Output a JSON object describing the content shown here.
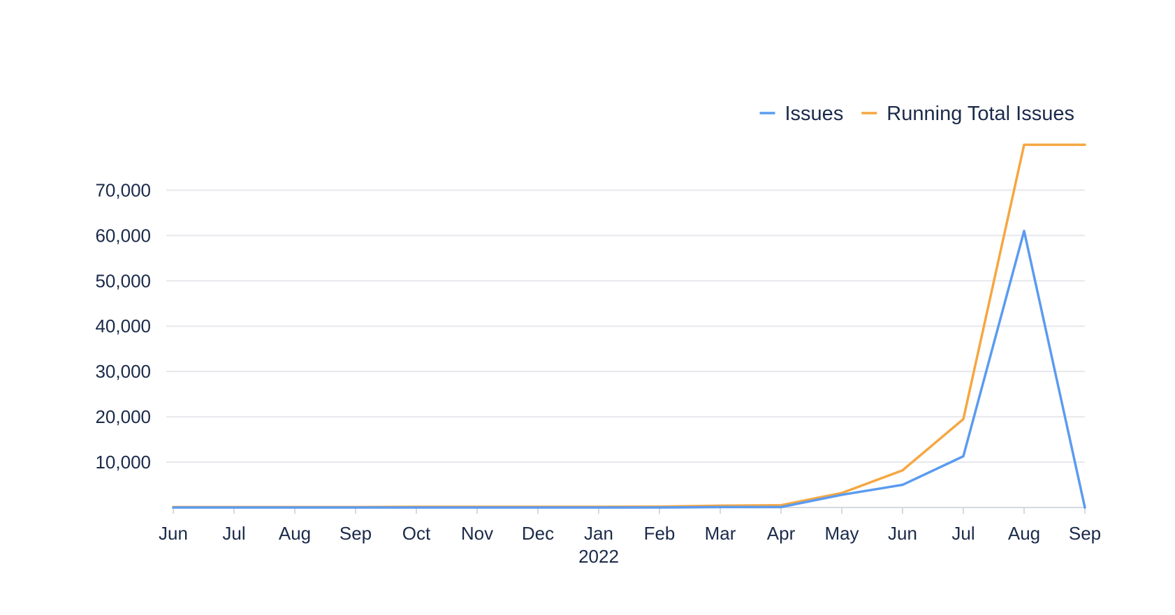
{
  "chart_data": {
    "type": "line",
    "title": "",
    "xlabel": "",
    "ylabel": "",
    "x": [
      "Jun",
      "Jul",
      "Aug",
      "Sep",
      "Oct",
      "Nov",
      "Dec",
      "Jan",
      "Feb",
      "Mar",
      "Apr",
      "May",
      "Jun",
      "Jul",
      "Aug",
      "Sep"
    ],
    "x_dates": [
      "2021-06",
      "2021-07",
      "2021-08",
      "2021-09",
      "2021-10",
      "2021-11",
      "2021-12",
      "2022-01",
      "2022-02",
      "2022-03",
      "2022-04",
      "2022-05",
      "2022-06",
      "2022-07",
      "2022-08",
      "2022-09"
    ],
    "x_year_labels": [
      {
        "index": 7,
        "text": "2022"
      }
    ],
    "yticks": [
      10000,
      20000,
      30000,
      40000,
      50000,
      60000,
      70000
    ],
    "ytick_labels": [
      "10,000",
      "20,000",
      "30,000",
      "40,000",
      "50,000",
      "60,000",
      "70,000"
    ],
    "ylim": [
      0,
      80000
    ],
    "grid": true,
    "legend_position": "top-right",
    "series": [
      {
        "name": "Issues",
        "color": "#5b9bf0",
        "values": [
          0,
          0,
          0,
          0,
          0,
          0,
          0,
          0,
          0,
          100,
          100,
          2800,
          5000,
          11300,
          61000,
          0
        ]
      },
      {
        "name": "Running Total Issues",
        "color": "#f5a742",
        "values": [
          100,
          100,
          100,
          100,
          150,
          150,
          150,
          150,
          200,
          400,
          500,
          3200,
          8200,
          19500,
          80000,
          80000
        ]
      }
    ]
  }
}
